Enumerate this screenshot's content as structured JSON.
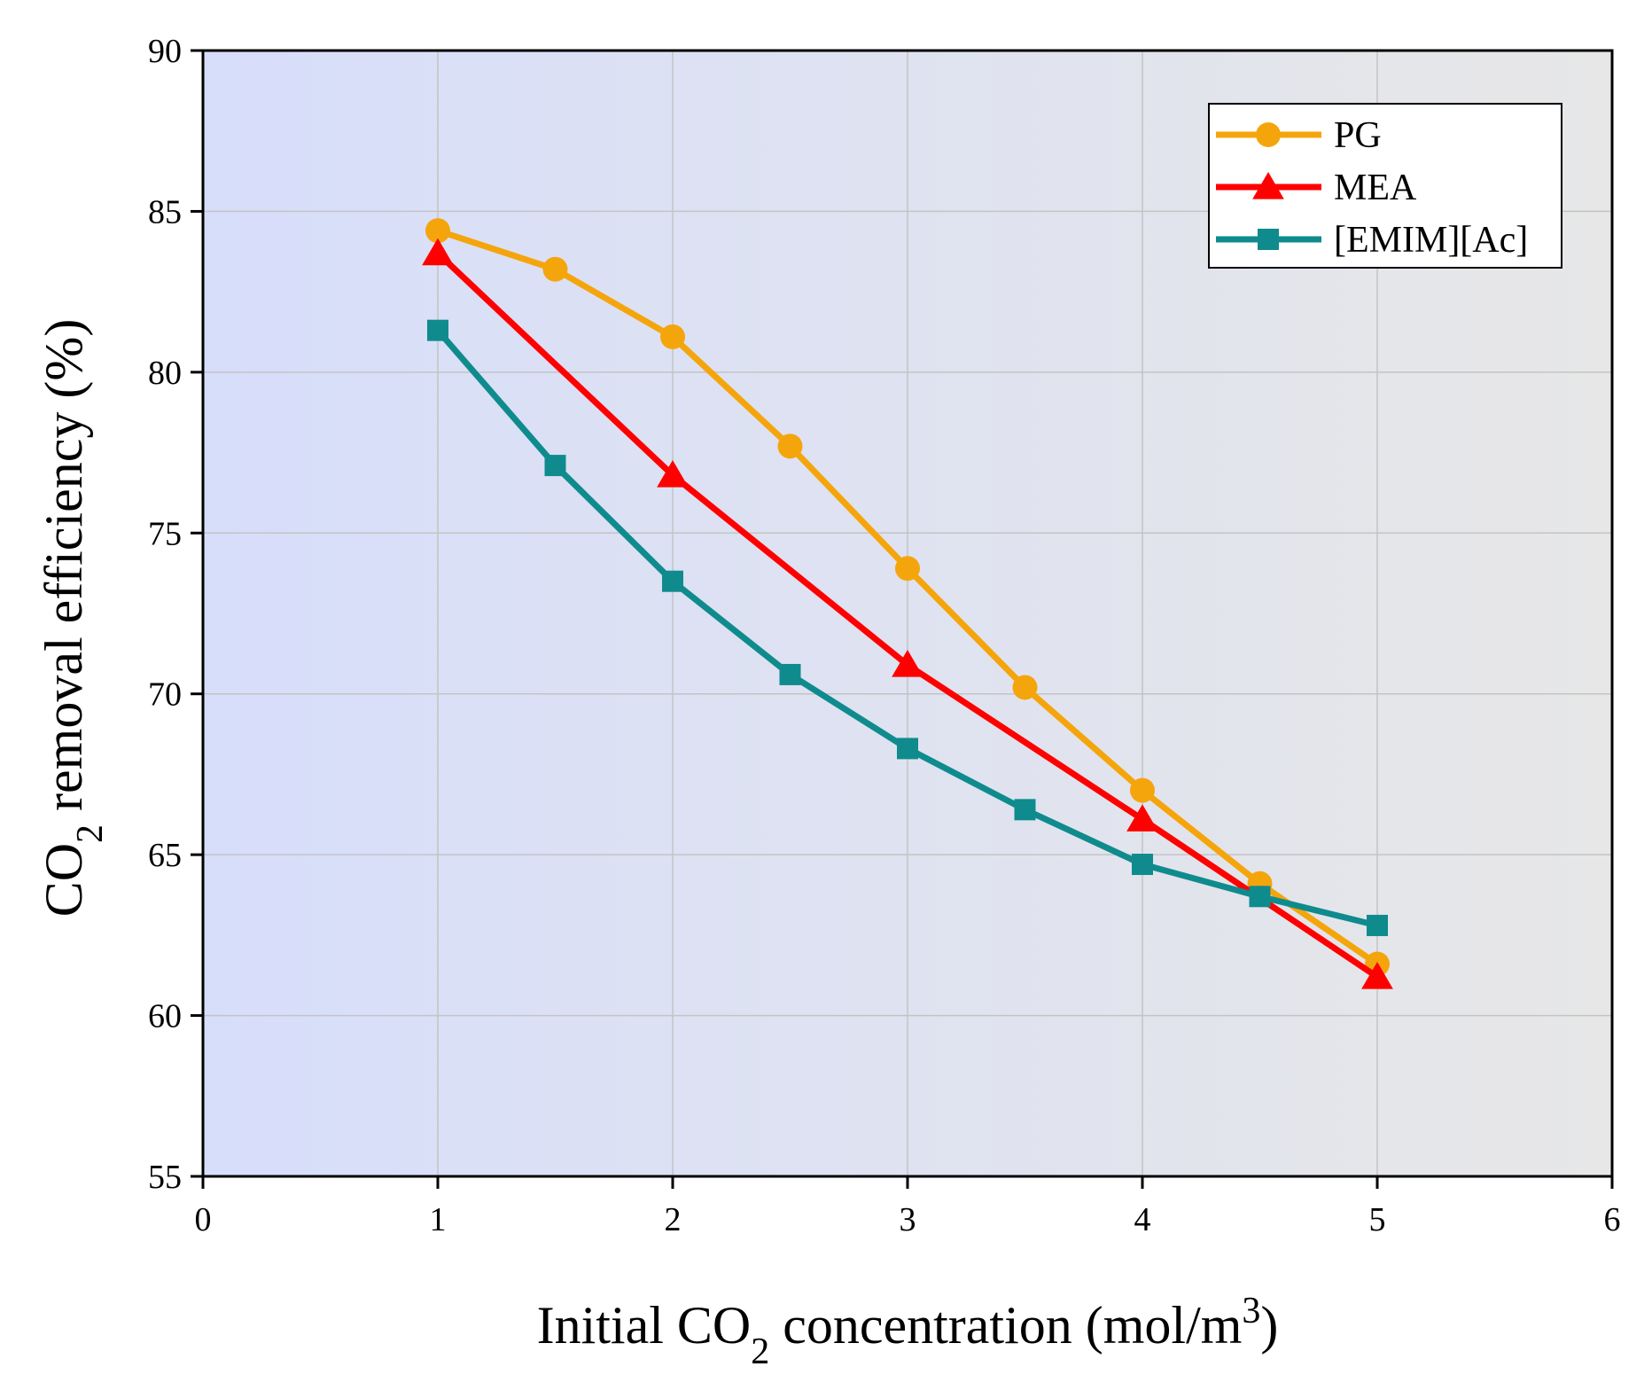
{
  "chart_data": {
    "type": "line",
    "title": "",
    "xlabel": {
      "prefix": "Initial CO",
      "sub": "2",
      "middle": " concentration (mol/m",
      "sup": "3",
      "suffix": ")"
    },
    "ylabel": {
      "prefix": "CO",
      "sub": "2",
      "suffix": " removal efficiency (%)"
    },
    "xlim": [
      0,
      6
    ],
    "ylim": [
      55,
      90
    ],
    "xticks": [
      "0",
      "1",
      "2",
      "3",
      "4",
      "5",
      "6"
    ],
    "yticks": [
      "55",
      "60",
      "65",
      "70",
      "75",
      "80",
      "85",
      "90"
    ],
    "grid": true,
    "legend_position": "top-right",
    "background_gradient": [
      "#d7defa",
      "#e7e7e7"
    ],
    "series": [
      {
        "name": "PG",
        "color": "#f5a50c",
        "marker": "circle",
        "x": [
          1,
          1.5,
          2,
          2.5,
          3,
          3.5,
          4,
          4.5,
          5
        ],
        "y": [
          84.4,
          83.2,
          81.1,
          77.7,
          73.9,
          70.2,
          67.0,
          64.1,
          61.6
        ]
      },
      {
        "name": "MEA",
        "color": "#ff0000",
        "marker": "triangle",
        "x": [
          1,
          2,
          3,
          4,
          5
        ],
        "y": [
          83.7,
          76.8,
          70.9,
          66.1,
          61.2
        ]
      },
      {
        "name": "[EMIM][Ac]",
        "color": "#0f8b8d",
        "marker": "square",
        "x": [
          1,
          1.5,
          2,
          2.5,
          3,
          3.5,
          4,
          4.5,
          5
        ],
        "y": [
          81.3,
          77.1,
          73.5,
          70.6,
          68.3,
          66.4,
          64.7,
          63.7,
          62.8
        ]
      }
    ]
  }
}
